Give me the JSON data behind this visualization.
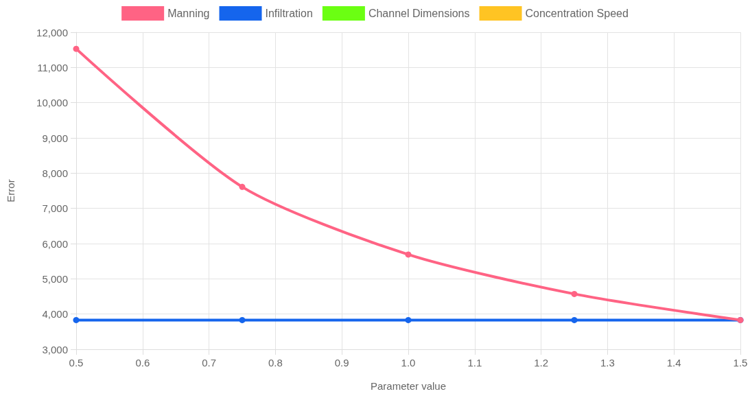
{
  "chart_data": {
    "type": "line",
    "xlabel": "Parameter value",
    "ylabel": "Error",
    "x": [
      0.5,
      0.75,
      1.0,
      1.25,
      1.5
    ],
    "series": [
      {
        "name": "Manning",
        "color": "#ff6384",
        "values": [
          11530,
          7610,
          5690,
          4570,
          3830
        ]
      },
      {
        "name": "Infiltration",
        "color": "#1565ed",
        "values": [
          3830,
          3830,
          3830,
          3830,
          3830
        ]
      },
      {
        "name": "Channel Dimensions",
        "color": "#6bff12",
        "values": [
          null,
          null,
          null,
          null,
          null
        ]
      },
      {
        "name": "Concentration Speed",
        "color": "#ffc423",
        "values": [
          null,
          null,
          null,
          null,
          null
        ]
      }
    ],
    "xlim": [
      0.5,
      1.5
    ],
    "xticks": [
      0.5,
      0.6,
      0.7,
      0.8,
      0.9,
      {
        "value": 1,
        "label": "1.0"
      },
      1.1,
      1.2,
      1.3,
      1.4,
      1.5
    ],
    "ylim": [
      3000,
      12000
    ],
    "yticks": [
      {
        "value": 3000,
        "label": "3,000"
      },
      {
        "value": 4000,
        "label": "4,000"
      },
      {
        "value": 5000,
        "label": "5,000"
      },
      {
        "value": 6000,
        "label": "6,000"
      },
      {
        "value": 7000,
        "label": "7,000"
      },
      {
        "value": 8000,
        "label": "8,000"
      },
      {
        "value": 9000,
        "label": "9,000"
      },
      {
        "value": 10000,
        "label": "10,000"
      },
      {
        "value": 11000,
        "label": "11,000"
      },
      {
        "value": 12000,
        "label": "12,000"
      }
    ],
    "grid": true,
    "legend": "top",
    "marker": "circle",
    "line_style": "solid"
  }
}
